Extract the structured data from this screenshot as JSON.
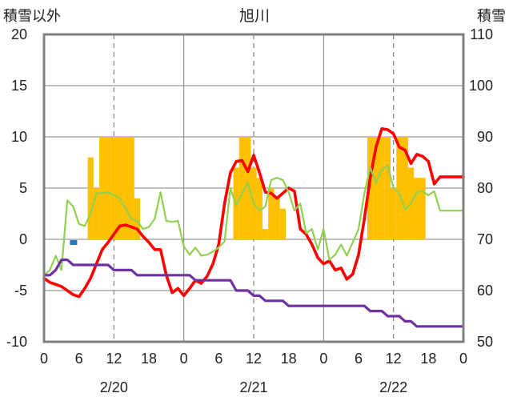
{
  "chart_data": {
    "type": "line",
    "title": "旭川",
    "ylabel_left": "積雪以外",
    "ylabel_right": "積雪",
    "y_left_range": [
      -10,
      20
    ],
    "y_left_ticks": [
      "20",
      "15",
      "10",
      "5",
      "0",
      "-5",
      "-10"
    ],
    "y_right_range": [
      50,
      110
    ],
    "y_right_ticks": [
      "110",
      "100",
      "90",
      "80",
      "70",
      "60",
      "50"
    ],
    "x_range_hours": [
      0,
      72
    ],
    "x_tick_labels": [
      "0",
      "6",
      "12",
      "18",
      "0",
      "6",
      "12",
      "18",
      "0",
      "6",
      "12",
      "18",
      "0"
    ],
    "date_labels": [
      "2/20",
      "2/21",
      "2/22"
    ],
    "colors": {
      "bar": "#FFC000",
      "red_line": "#FF0000",
      "green_line": "#92D050",
      "purple_line": "#7030A0",
      "blue_marker": "#2E75B6",
      "frame": "#808080",
      "grid": "#808080"
    },
    "bars": {
      "name": "",
      "x": [
        8,
        9,
        10,
        11,
        12,
        13,
        14,
        15,
        16,
        33,
        34,
        35,
        36,
        37,
        38,
        39,
        40,
        41,
        42,
        56,
        57,
        58,
        59,
        60,
        61,
        62,
        63,
        64,
        65
      ],
      "values": [
        8,
        5,
        10,
        10,
        10,
        10,
        10,
        10,
        4,
        7,
        10,
        10,
        7,
        6,
        1,
        5,
        4,
        3,
        0,
        10,
        10,
        10,
        10,
        5,
        10,
        10,
        7,
        6,
        6
      ]
    },
    "blue_marker": {
      "x": 5,
      "value": -0.3
    },
    "series": [
      {
        "name": "",
        "color": "#FF0000",
        "x": [
          0,
          1,
          2,
          3,
          4,
          5,
          6,
          7,
          8,
          9,
          10,
          11,
          12,
          13,
          14,
          15,
          16,
          17,
          18,
          19,
          20,
          21,
          22,
          23,
          24,
          25,
          26,
          27,
          28,
          29,
          30,
          31,
          32,
          33,
          34,
          35,
          36,
          37,
          38,
          39,
          40,
          41,
          42,
          43,
          44,
          45,
          46,
          47,
          48,
          49,
          50,
          51,
          52,
          53,
          54,
          55,
          56,
          57,
          58,
          59,
          60,
          61,
          62,
          63,
          64,
          65,
          66,
          67,
          68,
          69,
          70,
          71,
          72
        ],
        "values": [
          -3.8,
          -4.2,
          -4.4,
          -4.6,
          -5.0,
          -5.4,
          -5.6,
          -4.8,
          -3.8,
          -2.4,
          -1.0,
          -0.3,
          0.5,
          1.3,
          1.4,
          1.2,
          1.0,
          0.3,
          -0.3,
          -1.0,
          -1.0,
          -3.5,
          -5.2,
          -4.8,
          -5.5,
          -4.8,
          -4.0,
          -4.3,
          -3.6,
          -2.4,
          -0.5,
          3.5,
          6.5,
          7.6,
          7.7,
          6.6,
          8.2,
          6.5,
          4.6,
          4.5,
          4.0,
          4.5,
          5.0,
          4.7,
          1.0,
          0.5,
          -0.5,
          -1.8,
          -2.4,
          -2.1,
          -3.0,
          -2.8,
          -3.9,
          -3.4,
          -1.5,
          2.0,
          6.0,
          9.0,
          10.8,
          10.7,
          10.3,
          9.0,
          8.7,
          7.4,
          8.3,
          8.1,
          7.6,
          5.4,
          6.1,
          6.1,
          6.1,
          6.1,
          6.1
        ]
      },
      {
        "name": "",
        "color": "#92D050",
        "x": [
          0,
          1,
          2,
          3,
          4,
          5,
          6,
          7,
          8,
          9,
          10,
          11,
          12,
          13,
          14,
          15,
          16,
          17,
          18,
          19,
          20,
          21,
          22,
          23,
          24,
          25,
          26,
          27,
          28,
          29,
          30,
          31,
          32,
          33,
          34,
          35,
          36,
          37,
          38,
          39,
          40,
          41,
          42,
          43,
          44,
          45,
          46,
          47,
          48,
          49,
          50,
          51,
          52,
          53,
          54,
          55,
          56,
          57,
          58,
          59,
          60,
          61,
          62,
          63,
          64,
          65,
          66,
          67,
          68,
          69,
          70,
          71,
          72
        ],
        "values": [
          -3.5,
          -3.0,
          -1.6,
          -3.0,
          3.8,
          3.2,
          1.5,
          1.3,
          2.5,
          4.5,
          4.5,
          4.6,
          4.3,
          4.0,
          3.0,
          2.0,
          1.8,
          1.0,
          1.2,
          2.0,
          4.6,
          1.8,
          1.7,
          1.8,
          -0.7,
          -1.5,
          -0.8,
          -1.6,
          -1.5,
          -1.2,
          -0.8,
          -0.2,
          5.0,
          3.3,
          4.5,
          5.5,
          3.5,
          2.8,
          3.2,
          5.8,
          6.0,
          5.8,
          4.6,
          2.8,
          3.5,
          0.6,
          1.0,
          -1.0,
          1.0,
          -2.0,
          -1.5,
          -0.5,
          -1.6,
          -0.3,
          1.0,
          4.5,
          7.0,
          5.5,
          6.8,
          7.2,
          5.0,
          4.5,
          2.9,
          3.5,
          4.6,
          4.7,
          4.3,
          4.7,
          2.8,
          2.8,
          2.8,
          2.8,
          2.8
        ]
      },
      {
        "name": "",
        "color": "#7030A0",
        "axis": "right",
        "x": [
          0,
          1,
          2,
          3,
          4,
          5,
          6,
          7,
          8,
          9,
          10,
          11,
          12,
          13,
          14,
          15,
          16,
          17,
          18,
          19,
          20,
          21,
          22,
          23,
          24,
          25,
          26,
          27,
          28,
          29,
          30,
          31,
          32,
          33,
          34,
          35,
          36,
          37,
          38,
          39,
          40,
          41,
          42,
          43,
          44,
          45,
          46,
          47,
          48,
          49,
          50,
          51,
          52,
          53,
          54,
          55,
          56,
          57,
          58,
          59,
          60,
          61,
          62,
          63,
          64,
          65,
          66,
          67,
          68,
          69,
          70,
          71,
          72
        ],
        "values": [
          63,
          63,
          64,
          66,
          66,
          65,
          65,
          65,
          65,
          65,
          65,
          65,
          64,
          64,
          64,
          64,
          63,
          63,
          63,
          63,
          63,
          63,
          63,
          63,
          63,
          63,
          62,
          62,
          62,
          62,
          62,
          62,
          62,
          60,
          60,
          60,
          59,
          59,
          58,
          58,
          58,
          58,
          57,
          57,
          57,
          57,
          57,
          57,
          57,
          57,
          57,
          57,
          57,
          57,
          57,
          57,
          56,
          56,
          56,
          55,
          55,
          55,
          54,
          54,
          53,
          53,
          53,
          53,
          53,
          53,
          53,
          53,
          53
        ]
      }
    ],
    "grid": true,
    "legend": "none"
  }
}
